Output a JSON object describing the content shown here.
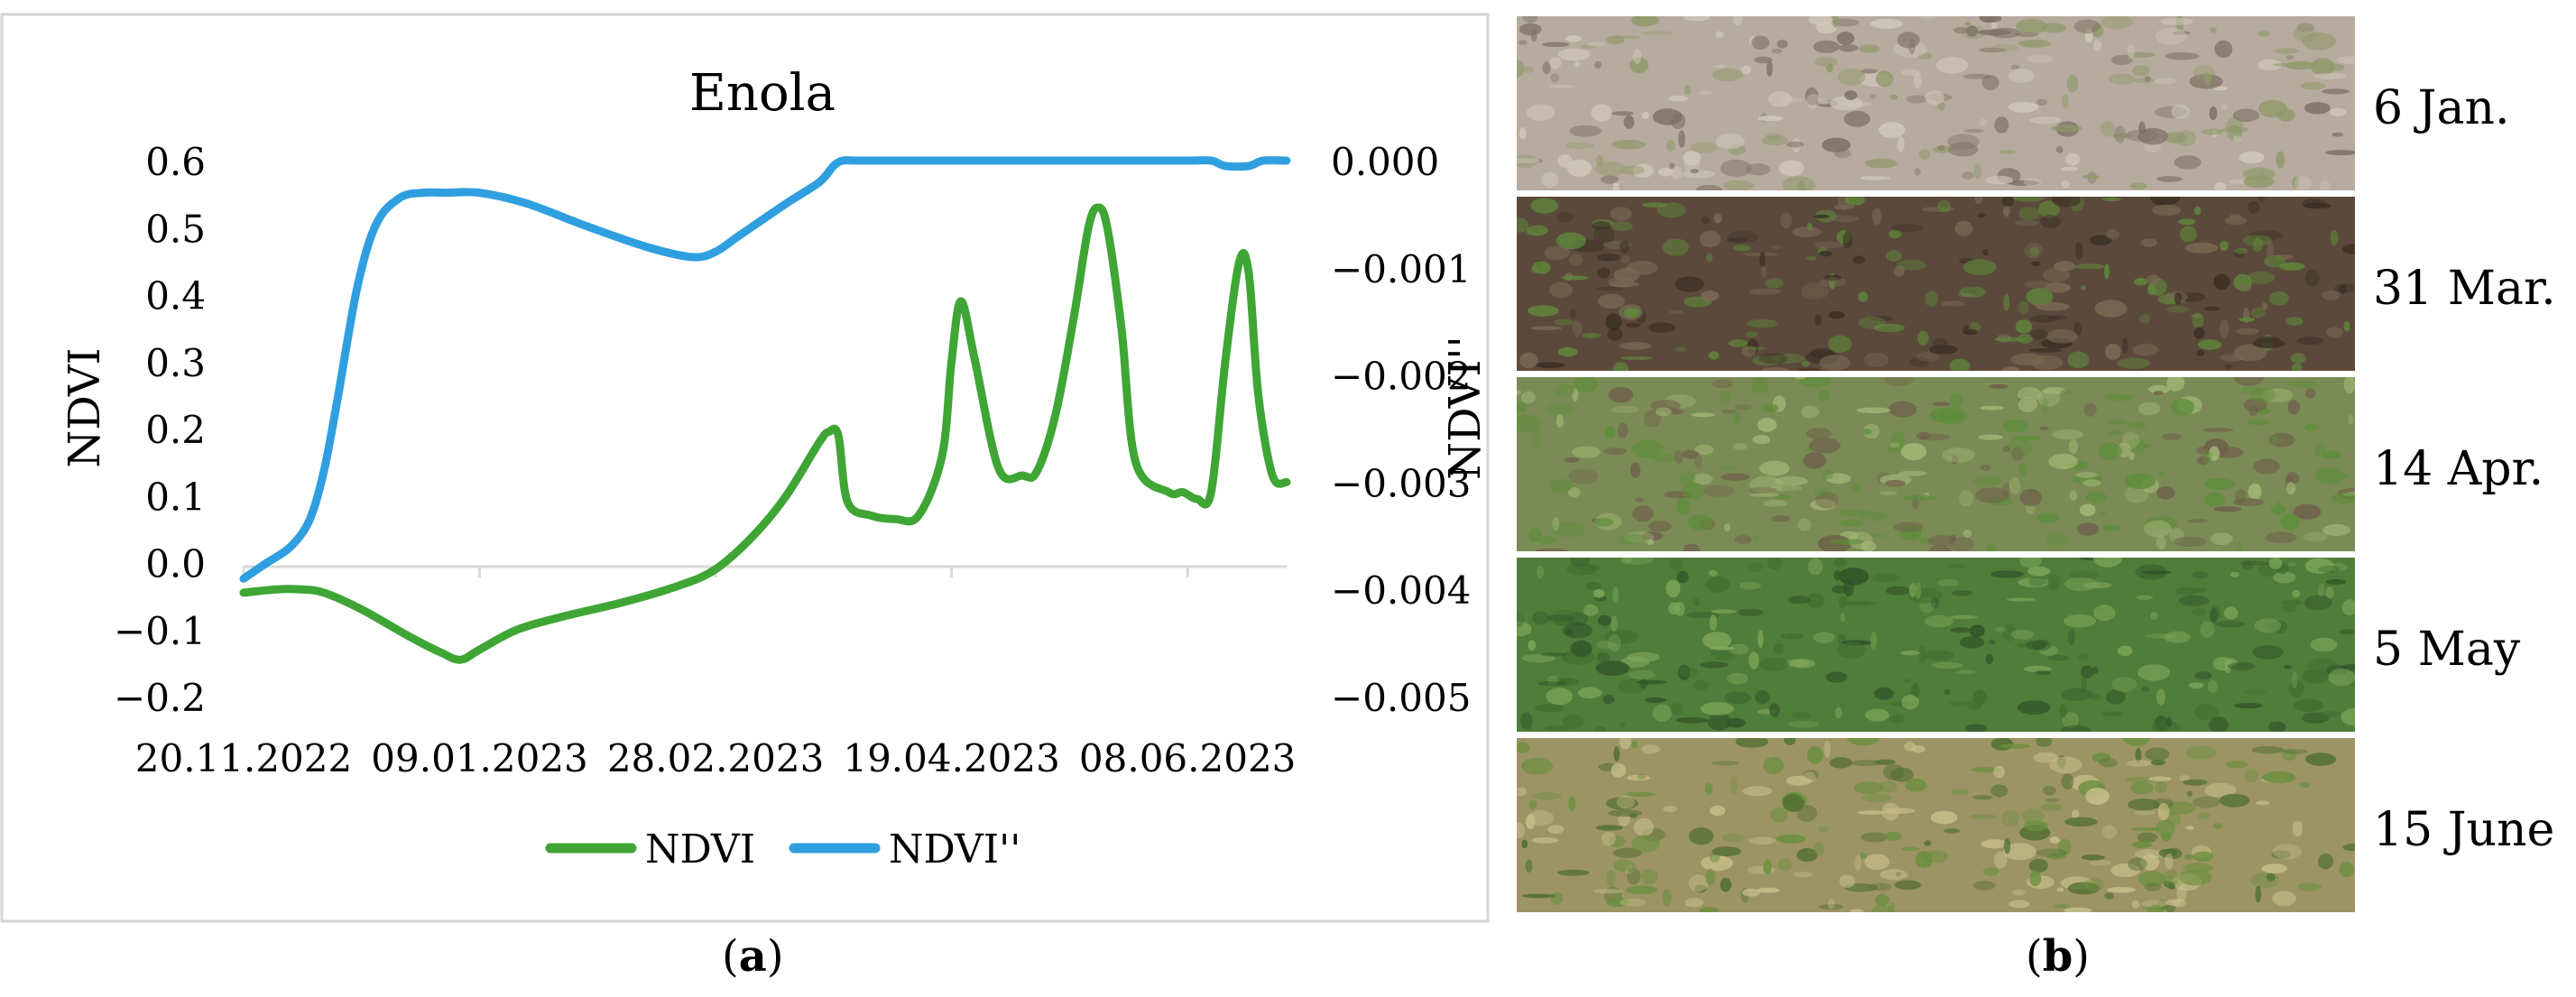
{
  "chart_data": {
    "type": "line",
    "title": "Enola",
    "xlabel": "",
    "ylabel": "NDVI",
    "y2label": "NDVI''",
    "x_tick_labels": [
      "20.11.2022",
      "09.01.2023",
      "28.02.2023",
      "19.04.2023",
      "08.06.2023"
    ],
    "x_tick_days": [
      0,
      50,
      100,
      150,
      200
    ],
    "xlim_days": [
      0,
      221
    ],
    "ylim": [
      -0.2,
      0.6
    ],
    "y_ticks": [
      "0.6",
      "0.5",
      "0.4",
      "0.3",
      "0.2",
      "0.1",
      "0.0",
      "−0.1",
      "−0.2"
    ],
    "y_tick_values": [
      0.6,
      0.5,
      0.4,
      0.3,
      0.2,
      0.1,
      0.0,
      -0.1,
      -0.2
    ],
    "y2lim": [
      -0.005,
      0.0
    ],
    "y2_ticks": [
      "0.000",
      "−0.001",
      "−0.002",
      "−0.003",
      "−0.004",
      "−0.005"
    ],
    "y2_tick_values": [
      0.0,
      -0.001,
      -0.002,
      -0.003,
      -0.004,
      -0.005
    ],
    "legend_position": "bottom",
    "series": [
      {
        "name": "NDVI",
        "axis": "left",
        "color": "#3fa535",
        "x_days": [
          0,
          7,
          12,
          17,
          25,
          35,
          42,
          46,
          50,
          58,
          68,
          80,
          92,
          100,
          108,
          115,
          122,
          124,
          126,
          128,
          133,
          138,
          143,
          148,
          150,
          152,
          155,
          160,
          165,
          168,
          172,
          176,
          179,
          181,
          183,
          186,
          189,
          196,
          199,
          202,
          205,
          208,
          211,
          213,
          215,
          218,
          221
        ],
        "values": [
          -0.045,
          -0.04,
          -0.04,
          -0.045,
          -0.07,
          -0.11,
          -0.135,
          -0.145,
          -0.13,
          -0.1,
          -0.08,
          -0.06,
          -0.035,
          -0.01,
          0.04,
          0.1,
          0.18,
          0.195,
          0.19,
          0.09,
          0.07,
          0.065,
          0.07,
          0.16,
          0.3,
          0.39,
          0.3,
          0.14,
          0.13,
          0.135,
          0.22,
          0.37,
          0.5,
          0.53,
          0.5,
          0.35,
          0.15,
          0.105,
          0.105,
          0.095,
          0.105,
          0.3,
          0.45,
          0.43,
          0.25,
          0.13,
          0.12
        ]
      },
      {
        "name": "NDVI''",
        "axis": "right",
        "color": "#2f9fe0",
        "x_days": [
          0,
          5,
          10,
          14,
          17,
          20,
          24,
          28,
          33,
          38,
          43,
          50,
          60,
          72,
          85,
          95,
          100,
          105,
          115,
          122,
          125,
          127,
          130,
          136,
          140,
          145,
          150,
          160,
          170,
          180,
          190,
          200,
          205,
          208,
          213,
          216,
          221
        ],
        "values": [
          -0.0039,
          -0.00375,
          -0.0036,
          -0.00335,
          -0.0029,
          -0.0022,
          -0.0012,
          -0.0006,
          -0.00035,
          -0.0003,
          -0.0003,
          -0.0003,
          -0.0004,
          -0.0006,
          -0.0008,
          -0.0009,
          -0.00085,
          -0.0007,
          -0.0004,
          -0.0002,
          -5e-05,
          0.0,
          0.0,
          0.0,
          0.0,
          0.0,
          0.0,
          0.0,
          0.0,
          0.0,
          0.0,
          0.0,
          0.0,
          -5e-05,
          -5e-05,
          0.0,
          0.0
        ]
      }
    ]
  },
  "photos": [
    {
      "label": "6 Jan.",
      "ground": "#b7aa9e",
      "dark": "#7d6f64",
      "light": "#d3c8bd",
      "green": "#8f9a6a"
    },
    {
      "label": "31 Mar.",
      "ground": "#5b4a3c",
      "dark": "#3a2e24",
      "light": "#7a6a55",
      "green": "#5f8a3a"
    },
    {
      "label": "14 Apr.",
      "ground": "#7b8b55",
      "dark": "#6f5f4c",
      "light": "#a3b777",
      "green": "#5e8e3b"
    },
    {
      "label": "5 May",
      "ground": "#4f7d3a",
      "dark": "#2f5228",
      "light": "#7fa85a",
      "green": "#3f6e30"
    },
    {
      "label": "15 June",
      "ground": "#9c9464",
      "dark": "#4f6e2e",
      "light": "#c8bf8a",
      "green": "#6a8f3e"
    }
  ],
  "captions": {
    "a": "a",
    "b": "b"
  }
}
